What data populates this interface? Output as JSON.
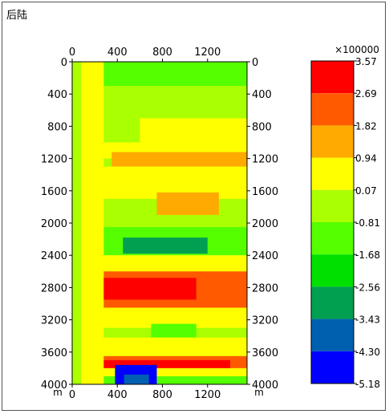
{
  "title": "后陆",
  "chart_data": {
    "type": "heatmap",
    "x_unit": "m",
    "y_unit": "m",
    "xlim": [
      0,
      1550
    ],
    "ylim": [
      0,
      4000
    ],
    "x_ticks": [
      "0",
      "400",
      "800",
      "1200"
    ],
    "x_tick_values": [
      0,
      400,
      800,
      1200
    ],
    "y_ticks": [
      "0",
      "400",
      "800",
      "1200",
      "1600",
      "2000",
      "2400",
      "2800",
      "3200",
      "3600",
      "4000"
    ],
    "y_tick_values": [
      0,
      400,
      800,
      1200,
      1600,
      2000,
      2400,
      2800,
      3200,
      3600,
      4000
    ],
    "colorbar": {
      "multiplier": "×100000",
      "labels": [
        "3.57",
        "2.69",
        "1.82",
        "0.94",
        "0.07",
        "-0.81",
        "-1.68",
        "-2.56",
        "-3.43",
        "-4.30",
        "-5.18"
      ],
      "colors": [
        "#ff0000",
        "#ff5a00",
        "#ffaa00",
        "#ffff00",
        "#aaff00",
        "#55ff00",
        "#00e000",
        "#00a050",
        "#0060b0",
        "#0000ff"
      ]
    },
    "background_color": "#aaff00",
    "bands": [
      {
        "x": [
          0,
          80
        ],
        "y0": 0,
        "y1": 4000,
        "color": "#aaff00"
      },
      {
        "x": [
          80,
          280
        ],
        "y0": 0,
        "y1": 4000,
        "color": "#ffff00"
      },
      {
        "x": [
          280,
          1550
        ],
        "y0": 0,
        "y1": 300,
        "color": "#55ff00"
      },
      {
        "x": [
          280,
          1550
        ],
        "y0": 300,
        "y1": 700,
        "color": "#aaff00"
      },
      {
        "x": [
          600,
          1550
        ],
        "y0": 700,
        "y1": 1000,
        "color": "#ffff00"
      },
      {
        "x": [
          280,
          1550
        ],
        "y0": 1000,
        "y1": 1200,
        "color": "#ffff00"
      },
      {
        "x": [
          350,
          1550
        ],
        "y0": 1120,
        "y1": 1300,
        "color": "#ffaa00"
      },
      {
        "x": [
          280,
          1550
        ],
        "y0": 1300,
        "y1": 1560,
        "color": "#ffff00"
      },
      {
        "x": [
          280,
          1550
        ],
        "y0": 1560,
        "y1": 1700,
        "color": "#ffff00"
      },
      {
        "x": [
          750,
          1300
        ],
        "y0": 1620,
        "y1": 1900,
        "color": "#ffaa00"
      },
      {
        "x": [
          280,
          1550
        ],
        "y0": 1900,
        "y1": 2050,
        "color": "#aaff00"
      },
      {
        "x": [
          280,
          1550
        ],
        "y0": 2050,
        "y1": 2400,
        "color": "#55ff00"
      },
      {
        "x": [
          450,
          1200
        ],
        "y0": 2180,
        "y1": 2380,
        "color": "#00a050"
      },
      {
        "x": [
          280,
          1550
        ],
        "y0": 2400,
        "y1": 2600,
        "color": "#ffff00"
      },
      {
        "x": [
          280,
          1550
        ],
        "y0": 2600,
        "y1": 3050,
        "color": "#ff5a00"
      },
      {
        "x": [
          280,
          1100
        ],
        "y0": 2680,
        "y1": 2950,
        "color": "#ff0000"
      },
      {
        "x": [
          280,
          1550
        ],
        "y0": 3050,
        "y1": 3300,
        "color": "#ffff00"
      },
      {
        "x": [
          700,
          1100
        ],
        "y0": 3250,
        "y1": 3420,
        "color": "#55ff00"
      },
      {
        "x": [
          280,
          1550
        ],
        "y0": 3420,
        "y1": 3650,
        "color": "#ffff00"
      },
      {
        "x": [
          280,
          1550
        ],
        "y0": 3650,
        "y1": 3800,
        "color": "#ff5a00"
      },
      {
        "x": [
          280,
          1400
        ],
        "y0": 3700,
        "y1": 3800,
        "color": "#ff0000"
      },
      {
        "x": [
          280,
          1550
        ],
        "y0": 3800,
        "y1": 3900,
        "color": "#ffff00"
      },
      {
        "x": [
          280,
          1550
        ],
        "y0": 3900,
        "y1": 4000,
        "color": "#55ff00"
      },
      {
        "x": [
          380,
          750
        ],
        "y0": 3760,
        "y1": 4000,
        "color": "#0000ff"
      },
      {
        "x": [
          460,
          680
        ],
        "y0": 3880,
        "y1": 4000,
        "color": "#0060b0"
      }
    ]
  }
}
